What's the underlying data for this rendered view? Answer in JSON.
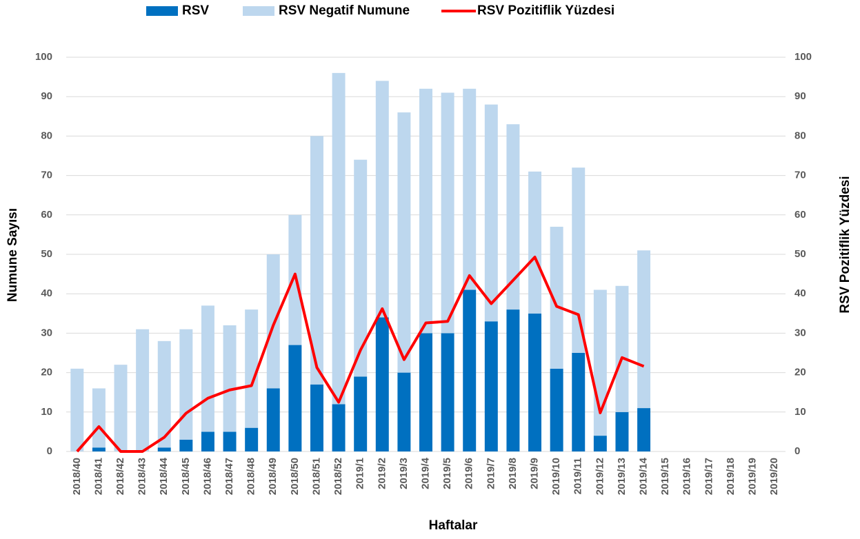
{
  "chart_data": {
    "type": "bar",
    "stacked": true,
    "x_label": "Haftalar",
    "y_label": "Numune Sayısı",
    "y2_label": "RSV Pozitiflik Yüzdesi",
    "categories": [
      "2018/40",
      "2018/41",
      "2018/42",
      "2018/43",
      "2018/44",
      "2018/45",
      "2018/46",
      "2018/47",
      "2018/48",
      "2018/49",
      "2018/50",
      "2018/51",
      "2018/52",
      "2019/1",
      "2019/2",
      "2019/3",
      "2019/4",
      "2019/5",
      "2019/6",
      "2019/7",
      "2019/8",
      "2019/9",
      "2019/10",
      "2019/11",
      "2019/12",
      "2019/13",
      "2019/14",
      "2019/15",
      "2019/16",
      "2019/17",
      "2019/18",
      "2019/19",
      "2019/20"
    ],
    "series": [
      {
        "name": "RSV",
        "type": "bar",
        "color": "#0070c0",
        "values": [
          0,
          1,
          0,
          0,
          1,
          3,
          5,
          5,
          6,
          16,
          27,
          17,
          12,
          19,
          34,
          20,
          30,
          30,
          41,
          33,
          36,
          35,
          21,
          25,
          4,
          10,
          11,
          null,
          null,
          null,
          null,
          null,
          null
        ]
      },
      {
        "name": "RSV Negatif Numune",
        "type": "bar",
        "color": "#bdd7ee",
        "values": [
          21,
          15,
          22,
          31,
          27,
          28,
          32,
          27,
          30,
          34,
          33,
          63,
          84,
          55,
          60,
          66,
          62,
          61,
          51,
          55,
          47,
          36,
          36,
          47,
          37,
          32,
          40,
          null,
          null,
          null,
          null,
          null,
          null
        ]
      },
      {
        "name": "RSV Pozitiflik Yüzdesi",
        "type": "line",
        "axis": "y2",
        "color": "#ff0000",
        "values": [
          0,
          6.3,
          0,
          0,
          3.6,
          9.7,
          13.5,
          15.6,
          16.7,
          32,
          45,
          21.3,
          12.5,
          25.7,
          36.2,
          23.3,
          32.6,
          33,
          44.6,
          37.5,
          43.4,
          49.3,
          36.8,
          34.7,
          9.8,
          23.8,
          21.6,
          null,
          null,
          null,
          null,
          null,
          null
        ]
      }
    ],
    "ylim": [
      0,
      100
    ],
    "yticks": [
      0,
      10,
      20,
      30,
      40,
      50,
      60,
      70,
      80,
      90,
      100
    ],
    "y2lim": [
      0,
      100
    ],
    "y2ticks": [
      0,
      10,
      20,
      30,
      40,
      50,
      60,
      70,
      80,
      90,
      100
    ],
    "grid": true
  }
}
